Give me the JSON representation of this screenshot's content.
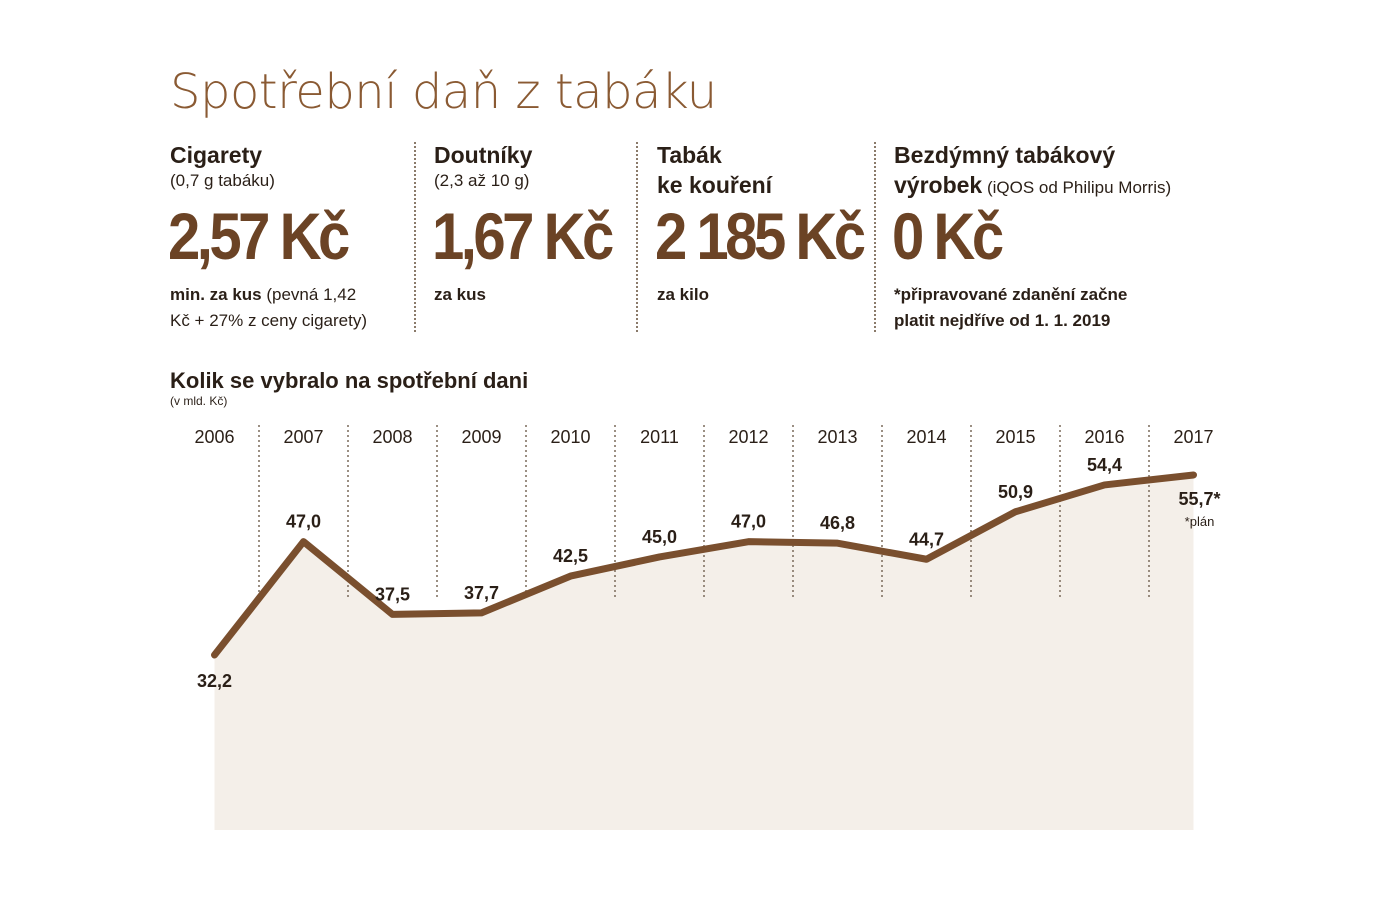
{
  "title": "Spotřební daň z tabáku",
  "products": [
    {
      "head": "Cigarety",
      "sub": "(0,7 g tabáku)",
      "value": "2,57 Kč",
      "note_bold": "min. za kus",
      "note_rest": " (pevná 1,42",
      "note_line2": "Kč + 27% z ceny cigarety)"
    },
    {
      "head": "Doutníky",
      "sub": "(2,3 až 10 g)",
      "value": "1,67 Kč",
      "note_bold": "za kus"
    },
    {
      "head_line1": "Tabák",
      "head_line2": "ke kouření",
      "value": "2 185 Kč",
      "note_bold": "za kilo"
    },
    {
      "head_line1": "Bezdýmný tabákový",
      "head_line2": "výrobek",
      "head_sub": " (iQOS od Philipu Morris)",
      "value": "0 Kč",
      "note_line1": "*připravované zdanění začne",
      "note_line2": "platit nejdříve od 1. 1. 2019"
    }
  ],
  "chart_title": "Kolik se vybralo na spotřební dani",
  "chart_unit": "(v mld. Kč)",
  "plan_note": "*plán",
  "colors": {
    "brown": "#7a4f2e",
    "title_brown": "#8a5a33",
    "text": "#2a1f17"
  },
  "chart_data": {
    "type": "line",
    "title": "Kolik se vybralo na spotřební dani",
    "ylabel": "(v mld. Kč)",
    "categories": [
      "2006",
      "2007",
      "2008",
      "2009",
      "2010",
      "2011",
      "2012",
      "2013",
      "2014",
      "2015",
      "2016",
      "2017"
    ],
    "values": [
      32.2,
      47.0,
      37.5,
      37.7,
      42.5,
      45.0,
      47.0,
      46.8,
      44.7,
      50.9,
      54.4,
      55.7
    ],
    "value_labels": [
      "32,2",
      "47,0",
      "37,5",
      "37,7",
      "42,5",
      "45,0",
      "47,0",
      "46,8",
      "44,7",
      "50,9",
      "54,4",
      "55,7*"
    ],
    "annotations": [
      "*plán"
    ],
    "grid": "vertical dotted separators"
  }
}
